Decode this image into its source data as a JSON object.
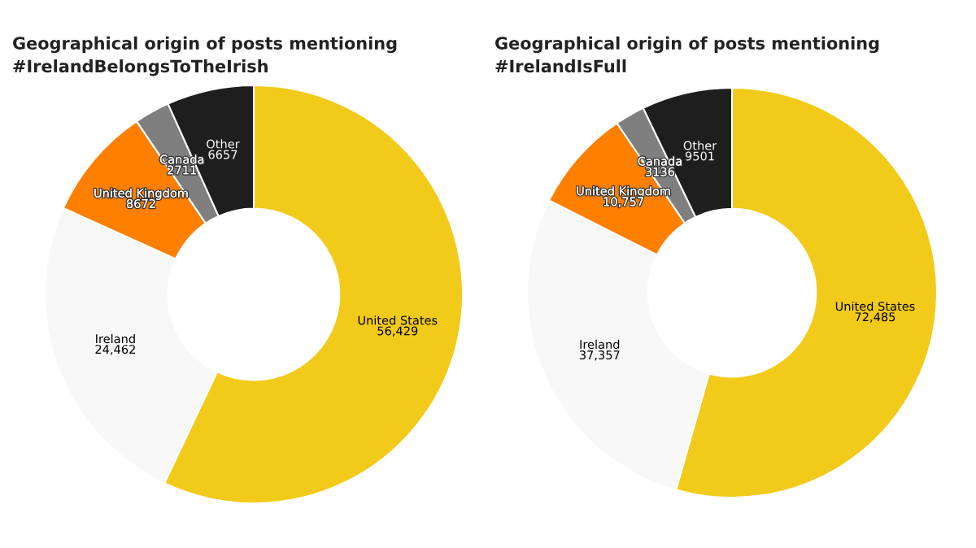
{
  "chart_data": [
    {
      "type": "donut",
      "title": "Geographical origin of posts mentioning\n#IrelandBelongsToTheIrish",
      "categories": [
        "United States",
        "Ireland",
        "United Kingdom",
        "Canada",
        "Other"
      ],
      "values": [
        56429,
        24462,
        8672,
        2711,
        6657
      ],
      "value_labels": [
        "56,429",
        "24,462",
        "8672",
        "2711",
        "6657"
      ],
      "colors": [
        "#f2ca1a",
        "#f8f8f8",
        "#ff7f00",
        "#7f7f7f",
        "#1e1e1e"
      ]
    },
    {
      "type": "donut",
      "title": "Geographical origin of posts mentioning\n#IrelandIsFull",
      "categories": [
        "United States",
        "Ireland",
        "United Kingdom",
        "Canada",
        "Other"
      ],
      "values": [
        72485,
        37357,
        10757,
        3136,
        9501
      ],
      "value_labels": [
        "72,485",
        "37,357",
        "10,757",
        "3136",
        "9501"
      ],
      "colors": [
        "#f2ca1a",
        "#f8f8f8",
        "#ff7f00",
        "#7f7f7f",
        "#1e1e1e"
      ]
    }
  ]
}
